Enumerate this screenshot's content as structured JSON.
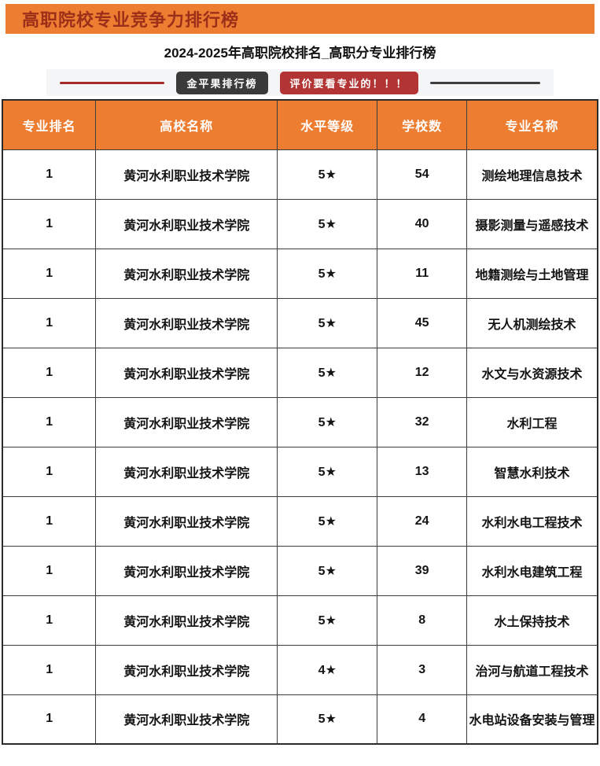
{
  "banner": {
    "title": "高职院校专业竞争力排行榜"
  },
  "subtitle": "2024-2025年高职院校排名_高职分专业排行榜",
  "ribbon": {
    "brand_badge": "金平果排行榜",
    "notice_badge": "评价要看专业的！！！"
  },
  "colors": {
    "banner_bg": "#ED7D31",
    "banner_text": "#9C2F1A",
    "header_bg": "#ED7D31",
    "header_text": "#FFFFFF",
    "brand_badge_bg": "#3A3A3A",
    "notice_badge_bg": "#B23434",
    "divider_red": "#A52A2A",
    "divider_dark": "#3F3F3F",
    "border": "#3C3C3C",
    "cell_text": "#141414"
  },
  "table": {
    "headers": [
      "专业排名",
      "高校名称",
      "水平等级",
      "学校数",
      "专业名称"
    ],
    "rows": [
      {
        "rank": "1",
        "university": "黄河水利职业技术学院",
        "grade": "5★",
        "school_count": "54",
        "major": "测绘地理信息技术"
      },
      {
        "rank": "1",
        "university": "黄河水利职业技术学院",
        "grade": "5★",
        "school_count": "40",
        "major": "摄影测量与遥感技术"
      },
      {
        "rank": "1",
        "university": "黄河水利职业技术学院",
        "grade": "5★",
        "school_count": "11",
        "major": "地籍测绘与土地管理"
      },
      {
        "rank": "1",
        "university": "黄河水利职业技术学院",
        "grade": "5★",
        "school_count": "45",
        "major": "无人机测绘技术"
      },
      {
        "rank": "1",
        "university": "黄河水利职业技术学院",
        "grade": "5★",
        "school_count": "12",
        "major": "水文与水资源技术"
      },
      {
        "rank": "1",
        "university": "黄河水利职业技术学院",
        "grade": "5★",
        "school_count": "32",
        "major": "水利工程"
      },
      {
        "rank": "1",
        "university": "黄河水利职业技术学院",
        "grade": "5★",
        "school_count": "13",
        "major": "智慧水利技术"
      },
      {
        "rank": "1",
        "university": "黄河水利职业技术学院",
        "grade": "5★",
        "school_count": "24",
        "major": "水利水电工程技术"
      },
      {
        "rank": "1",
        "university": "黄河水利职业技术学院",
        "grade": "5★",
        "school_count": "39",
        "major": "水利水电建筑工程"
      },
      {
        "rank": "1",
        "university": "黄河水利职业技术学院",
        "grade": "5★",
        "school_count": "8",
        "major": "水土保持技术"
      },
      {
        "rank": "1",
        "university": "黄河水利职业技术学院",
        "grade": "4★",
        "school_count": "3",
        "major": "治河与航道工程技术"
      },
      {
        "rank": "1",
        "university": "黄河水利职业技术学院",
        "grade": "5★",
        "school_count": "4",
        "major": "水电站设备安装与管理"
      }
    ]
  }
}
